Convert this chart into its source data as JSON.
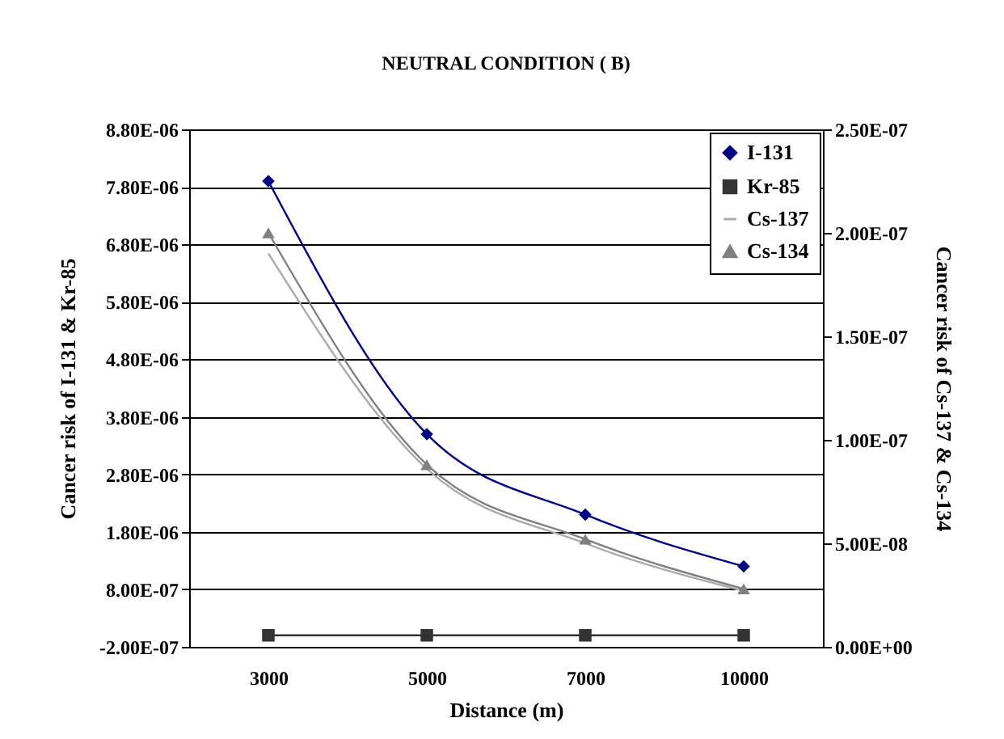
{
  "chart_data": {
    "type": "line",
    "title": "NEUTRAL CONDITION ( B)",
    "xlabel": "Distance (m)",
    "ylabel": "Cancer risk of I-131 & Kr-85",
    "y2label": "Cancer risk of Cs-137 & Cs-134",
    "categories": [
      "3000",
      "5000",
      "7000",
      "10000"
    ],
    "series": [
      {
        "name": "I-131",
        "color": "#000080",
        "marker": "diamond",
        "values": [
          7.9e-06,
          3.5e-06,
          2.1e-06,
          1.2e-06
        ]
      },
      {
        "name": "Kr-85",
        "color": "#333333",
        "marker": "square",
        "values": [
          0,
          0,
          0,
          0
        ]
      },
      {
        "name": "Cs-137",
        "color": "#aaaaaa",
        "marker": "none",
        "axis": "y2",
        "values": [
          1.9e-07,
          8.6e-08,
          5e-08,
          2.7e-08
        ]
      },
      {
        "name": "Cs-134",
        "color": "#808080",
        "marker": "triangle",
        "axis": "y2",
        "values": [
          2e-07,
          8.8e-08,
          5.2e-08,
          2.8e-08
        ]
      }
    ],
    "ylim": [
      -2e-07,
      8.8e-06
    ],
    "yticks": [
      {
        "value": -2e-07,
        "label": "-2.00E-07"
      },
      {
        "value": 8e-07,
        "label": "8.00E-07"
      },
      {
        "value": 1.8e-06,
        "label": "1.80E-06"
      },
      {
        "value": 2.8e-06,
        "label": "2.80E-06"
      },
      {
        "value": 3.8e-06,
        "label": "3.80E-06"
      },
      {
        "value": 4.8e-06,
        "label": "4.80E-06"
      },
      {
        "value": 5.8e-06,
        "label": "5.80E-06"
      },
      {
        "value": 6.8e-06,
        "label": "6.80E-06"
      },
      {
        "value": 7.8e-06,
        "label": "7.80E-06"
      },
      {
        "value": 8.8e-06,
        "label": "8.80E-06"
      }
    ],
    "y2lim": [
      0,
      2.5e-07
    ],
    "y2ticks": [
      {
        "value": 0,
        "label": "0.00E+00"
      },
      {
        "value": 5e-08,
        "label": "5.00E-08"
      },
      {
        "value": 1e-07,
        "label": "1.00E-07"
      },
      {
        "value": 1.5e-07,
        "label": "1.50E-07"
      },
      {
        "value": 2e-07,
        "label": "2.00E-07"
      },
      {
        "value": 2.5e-07,
        "label": "2.50E-07"
      }
    ],
    "grid": "y",
    "legend": "top right"
  }
}
